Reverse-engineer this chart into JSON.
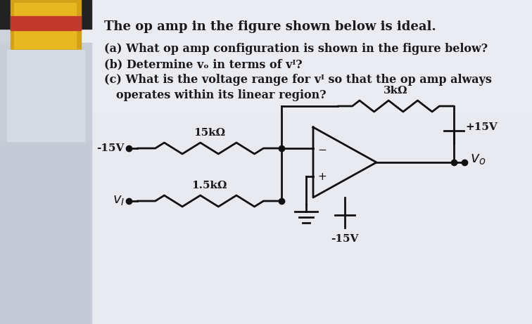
{
  "bg_color": "#cdd2dc",
  "paper_color": "#dde2ec",
  "text_color": "#1a1a1a",
  "line_color": "#111111",
  "title": "The op amp in the figure shown below is ideal.",
  "q1": "(a) What op amp configuration is shown in the figure below?",
  "q2": "(b) Determine vₒ in terms of vᴵ?",
  "q3": "(c) What is the voltage range for vᴵ so that the op amp always",
  "q3b": "     operates within its linear region?",
  "r1_label": "15kΩ",
  "r2_label": "3kΩ",
  "r3_label": "1.5kΩ",
  "v1_label": "-15V",
  "vcc_label": "+15V",
  "vee_label": "-15V",
  "vo_label": "vₒ",
  "vi_label": "vᴵ",
  "font_size_title": 13,
  "font_size_q": 11.5,
  "font_size_circuit": 11,
  "lw": 2.0
}
